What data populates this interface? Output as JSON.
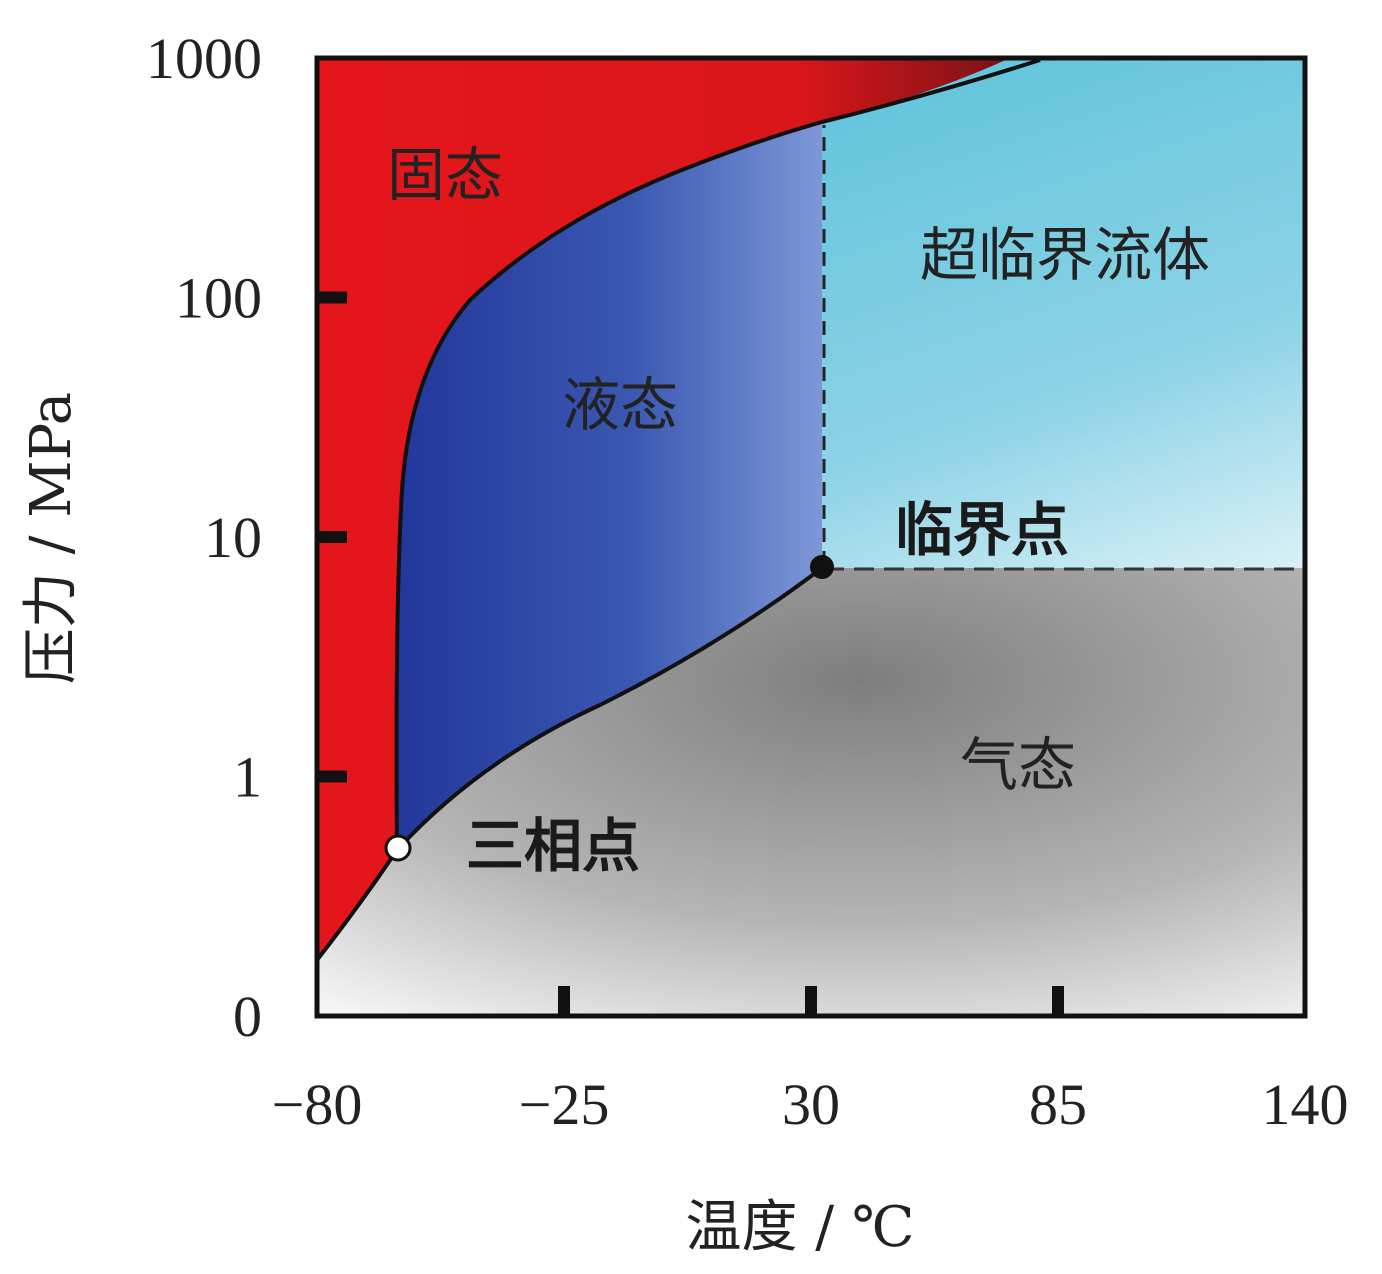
{
  "chart_data": {
    "type": "phase_diagram",
    "title": "",
    "xlabel": "温度 / ℃",
    "ylabel": "压力 / MPa",
    "x_ticks": [
      "−80",
      "−25",
      "30",
      "85",
      "140"
    ],
    "x_tick_values": [
      -80,
      -25,
      30,
      85,
      140
    ],
    "xlim": [
      -80,
      140
    ],
    "y_ticks": [
      "0",
      "1",
      "10",
      "100",
      "1000"
    ],
    "y_tick_values": [
      0,
      1,
      10,
      100,
      1000
    ],
    "ylim": [
      0,
      1000
    ],
    "y_scale": "log-like",
    "regions": [
      {
        "name": "固态",
        "color": "#e3161b"
      },
      {
        "name": "液态",
        "color": "#2b48a6"
      },
      {
        "name": "超临界流体",
        "color": "#5bc3da"
      },
      {
        "name": "气态",
        "color": "#9a9a9a"
      }
    ],
    "points": [
      {
        "name": "三相点",
        "x": -62,
        "y": 0.5,
        "marker": "open-circle"
      },
      {
        "name": "临界点",
        "x": 31,
        "y": 7.4,
        "marker": "filled-circle"
      }
    ],
    "boundaries": {
      "solid_liquid": [
        [
          -62,
          0.5
        ],
        [
          -62,
          5
        ],
        [
          -58,
          20
        ],
        [
          -45,
          60
        ],
        [
          -20,
          200
        ],
        [
          10,
          400
        ],
        [
          60,
          700
        ],
        [
          85,
          1000
        ]
      ],
      "liquid_gas": [
        [
          -62,
          0.5
        ],
        [
          -45,
          1
        ],
        [
          -20,
          2
        ],
        [
          10,
          4.5
        ],
        [
          31,
          7.4
        ]
      ],
      "solid_gas": [
        [
          -80,
          0.2
        ],
        [
          -62,
          0.5
        ]
      ],
      "critical_temperature_dashed": [
        [
          31,
          7.4
        ],
        [
          31,
          500
        ]
      ],
      "critical_pressure_dashed": [
        [
          31,
          7.4
        ],
        [
          140,
          7.4
        ]
      ]
    },
    "grid": false,
    "legend": "none"
  }
}
